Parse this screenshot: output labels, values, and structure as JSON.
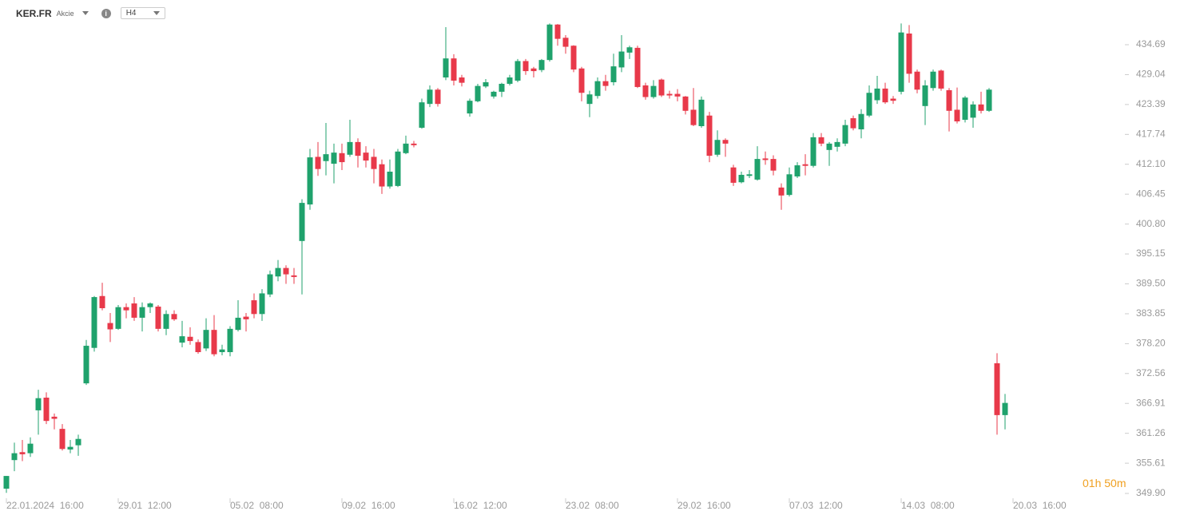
{
  "header": {
    "symbol": "KER.FR",
    "kind": "Akcie",
    "timeframe": "H4"
  },
  "countdown": "01h 50m",
  "chart_data": {
    "type": "candlestick",
    "up_color": "#1fa26c",
    "down_color": "#e8394a",
    "xlim": [
      -0.8,
      139.2
    ],
    "xticks": [
      {
        "value": 0,
        "label": "22.01.2024  16:00"
      },
      {
        "value": 14,
        "label": "29.01  12:00"
      },
      {
        "value": 28,
        "label": "05.02  08:00"
      },
      {
        "value": 42,
        "label": "09.02  16:00"
      },
      {
        "value": 56,
        "label": "16.02  12:00"
      },
      {
        "value": 70,
        "label": "23.02  08:00"
      },
      {
        "value": 84,
        "label": "29.02  16:00"
      },
      {
        "value": 98,
        "label": "07.03  12:00"
      },
      {
        "value": 112,
        "label": "14.03  08:00"
      },
      {
        "value": 126,
        "label": "20.03  16:00"
      }
    ],
    "ylim": [
      348.84,
      440.12
    ],
    "yticks": [
      {
        "value": 349.9,
        "label": "349.90"
      },
      355.61,
      361.26,
      366.91,
      372.56,
      {
        "value": 378.2,
        "label": "378.20"
      },
      383.85,
      {
        "value": 389.5,
        "label": "389.50"
      },
      395.15,
      {
        "value": 400.8,
        "label": "400.80"
      },
      406.45,
      {
        "value": 412.1,
        "label": "412.10"
      },
      417.74,
      423.39,
      429.04,
      434.69
    ],
    "open": [
      350.8,
      356.2,
      357.7,
      357.5,
      365.6,
      368.0,
      364.4,
      362.1,
      358.2,
      359.0,
      370.7,
      377.4,
      387.2,
      382.1,
      381.0,
      385.1,
      385.8,
      383.1,
      385.1,
      385.2,
      381.0,
      383.8,
      378.4,
      379.5,
      378.5,
      377.3,
      380.8,
      376.6,
      376.6,
      380.8,
      383.3,
      386.4,
      383.8,
      387.5,
      390.9,
      392.5,
      391.1,
      397.6,
      404.5,
      413.5,
      412.7,
      412.2,
      414.2,
      413.9,
      416.3,
      414.3,
      413.5,
      412.1,
      407.9,
      408.0,
      414.2,
      416.0,
      419.0,
      423.5,
      426.2,
      428.5,
      432.1,
      428.5,
      421.7,
      424.0,
      426.8,
      424.9,
      425.8,
      427.3,
      427.9,
      431.6,
      430.2,
      429.9,
      431.8,
      438.5,
      436.0,
      434.5,
      430.2,
      423.5,
      425.0,
      427.8,
      427.6,
      430.4,
      433.2,
      434.1,
      427.0,
      424.8,
      428.1,
      425.4,
      425.4,
      424.9,
      422.4,
      419.3,
      421.3,
      413.9,
      416.7,
      411.5,
      408.7,
      409.9,
      409.2,
      413.2,
      413.1,
      407.7,
      406.3,
      409.8,
      412.1,
      411.8,
      417.2,
      414.8,
      415.4,
      416.0,
      420.8,
      418.7,
      421.3,
      424.2,
      426.4,
      424.5,
      425.8,
      436.8,
      429.6,
      423.1,
      426.5,
      429.8,
      426.1,
      422.4,
      420.5,
      420.9,
      423.4,
      422.2,
      374.5,
      364.7
    ],
    "high": [
      353.2,
      359.5,
      360.0,
      360.5,
      369.5,
      369.0,
      365.0,
      363.0,
      360.0,
      361.0,
      378.9,
      387.2,
      389.7,
      384.0,
      385.5,
      385.8,
      387.0,
      386.0,
      386.0,
      385.5,
      384.5,
      384.5,
      382.5,
      381.3,
      379.0,
      383.0,
      383.6,
      378.0,
      381.5,
      386.4,
      384.0,
      387.7,
      388.5,
      392.0,
      394.0,
      393.0,
      392.5,
      405.5,
      415.0,
      416.3,
      419.9,
      416.0,
      416.0,
      420.5,
      417.0,
      415.5,
      415.0,
      413.0,
      413.0,
      415.0,
      417.5,
      416.5,
      424.5,
      427.0,
      426.5,
      438.0,
      432.9,
      429.0,
      424.5,
      427.3,
      428.2,
      426.0,
      427.5,
      429.0,
      432.0,
      432.0,
      430.5,
      432.0,
      438.7,
      438.6,
      436.5,
      434.6,
      430.5,
      426.0,
      428.5,
      429.0,
      433.0,
      436.5,
      434.5,
      434.5,
      427.5,
      428.0,
      428.3,
      426.0,
      426.3,
      425.0,
      426.5,
      424.9,
      422.0,
      418.5,
      417.0,
      412.0,
      410.7,
      411.0,
      415.5,
      414.5,
      413.8,
      408.5,
      411.5,
      412.5,
      414.0,
      418.0,
      418.0,
      416.3,
      417.0,
      420.5,
      421.3,
      422.5,
      427.0,
      428.8,
      427.5,
      425.0,
      438.7,
      438.4,
      430.0,
      428.0,
      430.0,
      430.0,
      426.5,
      426.6,
      425.0,
      424.0,
      425.8,
      426.5,
      376.4,
      368.7
    ],
    "low": [
      350.0,
      354.1,
      356.0,
      356.8,
      361.0,
      363.0,
      362.0,
      358.0,
      357.5,
      357.0,
      370.4,
      376.7,
      384.5,
      378.5,
      380.8,
      383.0,
      382.5,
      380.5,
      384.0,
      380.5,
      379.8,
      382.5,
      377.5,
      378.0,
      376.3,
      376.8,
      375.8,
      376.0,
      375.8,
      380.5,
      380.5,
      383.0,
      382.5,
      387.0,
      390.0,
      389.5,
      389.5,
      387.5,
      403.5,
      409.9,
      410.0,
      408.5,
      411.0,
      413.5,
      411.5,
      411.5,
      408.5,
      406.5,
      407.5,
      407.8,
      414.0,
      415.3,
      418.8,
      422.9,
      423.0,
      428.0,
      427.0,
      426.8,
      421.1,
      423.8,
      426.5,
      424.5,
      424.8,
      427.0,
      427.6,
      429.0,
      428.5,
      429.5,
      431.5,
      434.5,
      433.0,
      429.5,
      424.0,
      421.0,
      424.5,
      426.0,
      427.0,
      429.5,
      432.0,
      426.5,
      424.3,
      424.5,
      424.8,
      424.5,
      424.0,
      421.5,
      419.3,
      419.0,
      412.5,
      413.5,
      413.5,
      408.0,
      408.5,
      409.5,
      409.0,
      412.0,
      410.0,
      403.5,
      406.0,
      409.5,
      410.0,
      411.5,
      415.5,
      411.8,
      414.5,
      415.5,
      418.5,
      417.0,
      421.0,
      423.5,
      423.5,
      423.5,
      425.3,
      427.5,
      425.5,
      419.5,
      426.0,
      426.0,
      418.3,
      419.8,
      420.0,
      419.0,
      421.7,
      422.0,
      361.0,
      362.0
    ],
    "close": [
      353.2,
      357.5,
      357.3,
      359.3,
      367.9,
      363.6,
      364.0,
      358.3,
      358.7,
      360.2,
      377.8,
      387.0,
      384.9,
      380.9,
      385.1,
      384.5,
      383.1,
      385.1,
      385.8,
      381.0,
      383.8,
      382.8,
      379.6,
      378.7,
      376.6,
      380.8,
      376.2,
      377.1,
      381.0,
      383.1,
      382.8,
      383.8,
      387.7,
      391.3,
      392.5,
      391.3,
      390.8,
      404.8,
      413.4,
      411.2,
      414.0,
      414.3,
      412.5,
      416.3,
      413.7,
      412.8,
      411.2,
      407.9,
      410.7,
      414.5,
      416.0,
      415.7,
      423.8,
      426.2,
      423.5,
      432.1,
      427.9,
      427.5,
      424.1,
      426.9,
      427.6,
      425.8,
      427.3,
      428.5,
      431.6,
      429.7,
      429.7,
      431.8,
      438.5,
      435.8,
      434.3,
      430.0,
      425.6,
      425.3,
      427.8,
      426.9,
      430.6,
      433.4,
      434.2,
      426.7,
      424.8,
      426.9,
      425.1,
      425.1,
      424.9,
      422.2,
      419.5,
      424.3,
      413.7,
      416.7,
      416.0,
      408.6,
      410.1,
      410.2,
      413.1,
      412.9,
      410.9,
      406.2,
      410.2,
      411.9,
      411.8,
      417.2,
      416.0,
      416.0,
      416.3,
      419.5,
      418.9,
      421.6,
      425.6,
      426.4,
      423.8,
      424.1,
      437.0,
      429.2,
      426.2,
      427.0,
      429.6,
      426.4,
      422.2,
      420.2,
      424.7,
      423.4,
      422.2,
      426.2,
      364.7,
      367.0
    ]
  }
}
